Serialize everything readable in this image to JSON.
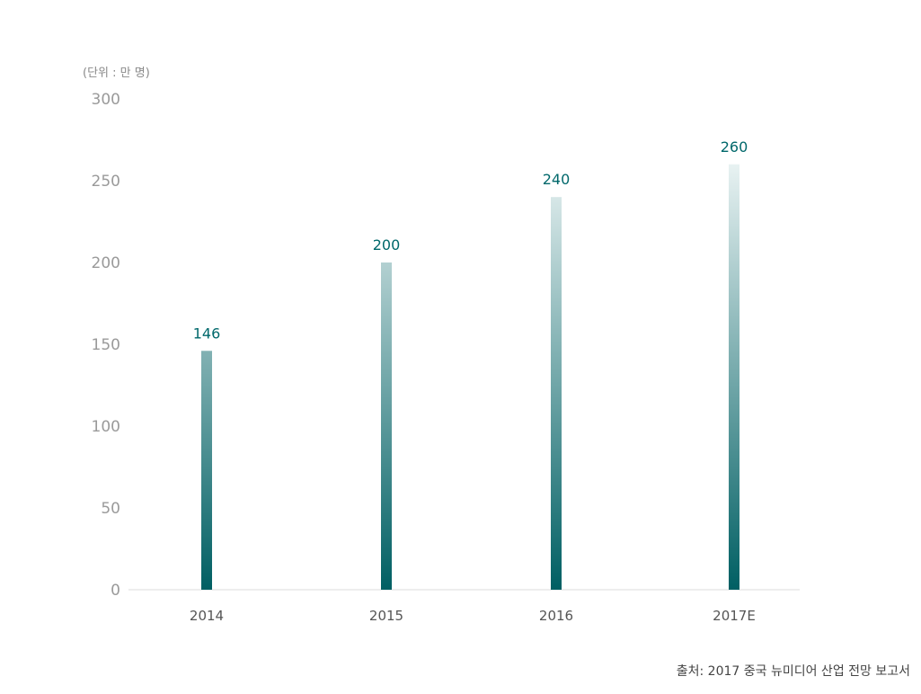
{
  "chart_data": {
    "type": "bar",
    "unit_label": "(단위 : 만 명)",
    "categories": [
      "2014",
      "2015",
      "2016",
      "2017E"
    ],
    "values": [
      146,
      200,
      240,
      260
    ],
    "ylim": [
      0,
      300
    ],
    "yticks": [
      0,
      50,
      100,
      150,
      200,
      250,
      300
    ],
    "grid": false,
    "source": "출처: 2017 중국 뉴미디어 산업 전망 보고서",
    "colors": {
      "bar_dark": "#005f63",
      "bar_light": "#e8f2f2",
      "value_label": "#00686b",
      "tick_label": "#9a9a9a",
      "category_label": "#555555",
      "axis": "#dddddd"
    }
  }
}
